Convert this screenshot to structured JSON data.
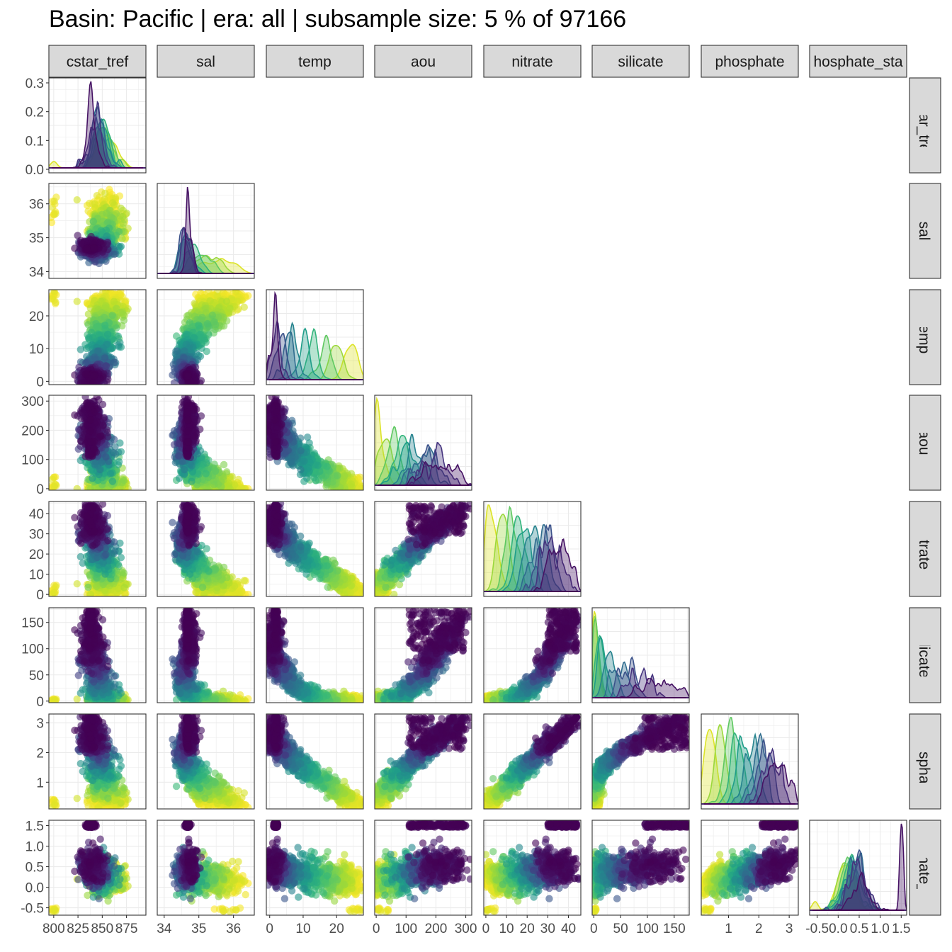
{
  "title": "Basin: Pacific | era: all | subsample size: 5 % of 97166",
  "chart_data": {
    "type": "scatter",
    "matrix": "pairs plot (lower triangle scatter, diagonal density)",
    "color_scale": "viridis",
    "color_low": "#fde725",
    "color_high": "#440154",
    "variables": [
      {
        "name": "cstar_tref",
        "range": [
          795,
          895
        ],
        "ticks": [
          800,
          825,
          850,
          875
        ],
        "tick_labels": [
          "800",
          "825",
          "850",
          "875"
        ],
        "density_ymax": 0.3,
        "density_ticks": [
          0.0,
          0.1,
          0.2,
          0.3
        ],
        "density_tick_labels": [
          "0.0",
          "0.1",
          "0.2",
          "0.3"
        ]
      },
      {
        "name": "sal",
        "range": [
          33.8,
          36.6
        ],
        "ticks": [
          34,
          35,
          36
        ],
        "tick_labels": [
          "34",
          "35",
          "36"
        ]
      },
      {
        "name": "temp",
        "range": [
          -1,
          28
        ],
        "ticks": [
          0,
          10,
          20
        ],
        "tick_labels": [
          "0",
          "10",
          "20"
        ]
      },
      {
        "name": "aou",
        "range": [
          -5,
          320
        ],
        "ticks": [
          0,
          100,
          200,
          300
        ],
        "tick_labels": [
          "0",
          "100",
          "200",
          "300"
        ]
      },
      {
        "name": "nitrate",
        "range": [
          -1,
          46
        ],
        "ticks": [
          0,
          10,
          20,
          30,
          40
        ],
        "tick_labels": [
          "0",
          "10",
          "20",
          "30",
          "40"
        ]
      },
      {
        "name": "silicate",
        "range": [
          -3,
          178
        ],
        "ticks": [
          0,
          50,
          100,
          150
        ],
        "tick_labels": [
          "0",
          "50",
          "100",
          "150"
        ]
      },
      {
        "name": "phosphate",
        "range": [
          0.1,
          3.3
        ],
        "ticks": [
          1,
          2,
          3
        ],
        "tick_labels": [
          "1",
          "2",
          "3"
        ]
      },
      {
        "name": "phosphate_star",
        "range": [
          -0.68,
          1.63
        ],
        "ticks": [
          -0.5,
          0.0,
          0.5,
          1.0,
          1.5
        ],
        "tick_labels": [
          "-0.5",
          "0.0",
          "0.5",
          "1.0",
          "1.5"
        ]
      }
    ],
    "strip_labels": [
      "cstar_tref",
      "sal",
      "temp",
      "aou",
      "nitrate",
      "silicate",
      "phosphate",
      "hosphate_sta"
    ],
    "row_strip_labels": [
      "cstar_tref",
      "sal",
      "temp",
      "aou",
      "nitrate",
      "silicate",
      "phosphate",
      "hosphate_sta"
    ],
    "grid": true,
    "legend": "none"
  }
}
